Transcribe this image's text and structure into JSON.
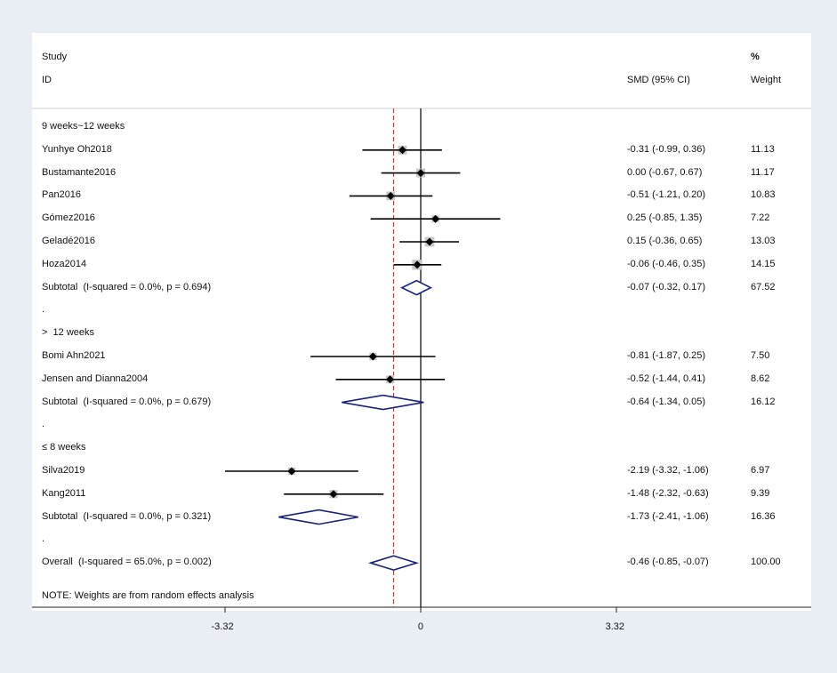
{
  "header": {
    "study_line1": "Study",
    "study_line2": "ID",
    "smd_label": "SMD (95% CI)",
    "weight_line1": "%",
    "weight_line2": "Weight"
  },
  "note": "NOTE: Weights are from random effects analysis",
  "colors": {
    "background": "#e9eef5",
    "ci_line": "#000000",
    "weight_box": "#c8c8c8",
    "diamond": "#1a237e",
    "overall_line": "#c0392b"
  },
  "chart_data": {
    "type": "forest",
    "measure": "SMD",
    "x_ticks": [
      {
        "value": -3.32,
        "label": "-3.32"
      },
      {
        "value": 0,
        "label": "0"
      },
      {
        "value": 3.32,
        "label": "3.32"
      }
    ],
    "xlim": [
      -3.32,
      3.32
    ],
    "null_line": 0,
    "overall_estimate": -0.46,
    "rows": [
      {
        "kind": "group",
        "label": "9 weeks~12 weeks"
      },
      {
        "kind": "study",
        "label": "Yunhye Oh2018",
        "est": -0.31,
        "lo": -0.99,
        "hi": 0.36,
        "ci_text": "-0.31 (-0.99, 0.36)",
        "weight": "11.13"
      },
      {
        "kind": "study",
        "label": "Bustamante2016",
        "est": 0.0,
        "lo": -0.67,
        "hi": 0.67,
        "ci_text": "0.00 (-0.67, 0.67)",
        "weight": "11.17"
      },
      {
        "kind": "study",
        "label": "Pan2016",
        "est": -0.51,
        "lo": -1.21,
        "hi": 0.2,
        "ci_text": "-0.51 (-1.21, 0.20)",
        "weight": "10.83"
      },
      {
        "kind": "study",
        "label": "Gómez2016",
        "est": 0.25,
        "lo": -0.85,
        "hi": 1.35,
        "ci_text": "0.25 (-0.85, 1.35)",
        "weight": "7.22"
      },
      {
        "kind": "study",
        "label": "Geladé2016",
        "est": 0.15,
        "lo": -0.36,
        "hi": 0.65,
        "ci_text": "0.15 (-0.36, 0.65)",
        "weight": "13.03"
      },
      {
        "kind": "study",
        "label": "Hoza2014",
        "est": -0.06,
        "lo": -0.46,
        "hi": 0.35,
        "ci_text": "-0.06 (-0.46, 0.35)",
        "weight": "14.15"
      },
      {
        "kind": "subtotal",
        "label": "Subtotal  (I-squared = 0.0%, p = 0.694)",
        "est": -0.07,
        "lo": -0.32,
        "hi": 0.17,
        "ci_text": "-0.07 (-0.32, 0.17)",
        "weight": "67.52"
      },
      {
        "kind": "dot",
        "label": "."
      },
      {
        "kind": "group",
        "label": ">  12 weeks"
      },
      {
        "kind": "study",
        "label": "Bomi Ahn2021",
        "est": -0.81,
        "lo": -1.87,
        "hi": 0.25,
        "ci_text": "-0.81 (-1.87, 0.25)",
        "weight": "7.50"
      },
      {
        "kind": "study",
        "label": "Jensen and Dianna2004",
        "est": -0.52,
        "lo": -1.44,
        "hi": 0.41,
        "ci_text": "-0.52 (-1.44, 0.41)",
        "weight": "8.62"
      },
      {
        "kind": "subtotal",
        "label": "Subtotal  (I-squared = 0.0%, p = 0.679)",
        "est": -0.64,
        "lo": -1.34,
        "hi": 0.05,
        "ci_text": "-0.64 (-1.34, 0.05)",
        "weight": "16.12"
      },
      {
        "kind": "dot",
        "label": "."
      },
      {
        "kind": "group",
        "label": "≤ 8 weeks"
      },
      {
        "kind": "study",
        "label": "Silva2019",
        "est": -2.19,
        "lo": -3.32,
        "hi": -1.06,
        "ci_text": "-2.19 (-3.32, -1.06)",
        "weight": "6.97"
      },
      {
        "kind": "study",
        "label": "Kang2011",
        "est": -1.48,
        "lo": -2.32,
        "hi": -0.63,
        "ci_text": "-1.48 (-2.32, -0.63)",
        "weight": "9.39"
      },
      {
        "kind": "subtotal",
        "label": "Subtotal  (I-squared = 0.0%, p = 0.321)",
        "est": -1.73,
        "lo": -2.41,
        "hi": -1.06,
        "ci_text": "-1.73 (-2.41, -1.06)",
        "weight": "16.36"
      },
      {
        "kind": "dot",
        "label": "."
      },
      {
        "kind": "overall",
        "label": "Overall  (I-squared = 65.0%, p = 0.002)",
        "est": -0.46,
        "lo": -0.85,
        "hi": -0.07,
        "ci_text": "-0.46 (-0.85, -0.07)",
        "weight": "100.00"
      }
    ]
  }
}
